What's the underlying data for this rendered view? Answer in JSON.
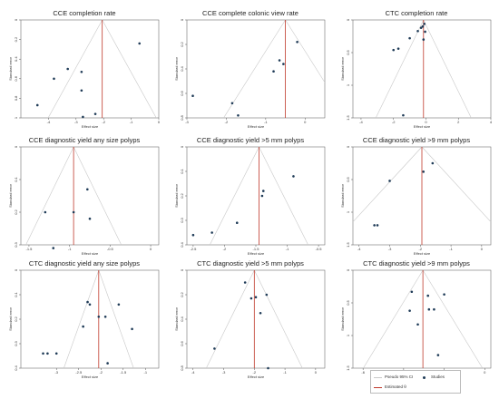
{
  "legend": {
    "items": [
      {
        "label": "Pseudo 95% CI",
        "kind": "line",
        "color": "#c8c8c8"
      },
      {
        "label": "Studies",
        "kind": "dot",
        "color": "#1f3b57"
      },
      {
        "label": "Estimated θ",
        "kind": "line",
        "color": "#c0392b"
      }
    ]
  },
  "colors": {
    "ci_lines": "#c8c8c8",
    "estimate": "#c0392b",
    "points": "#1f3b57",
    "axis": "#555555"
  },
  "chart_data": [
    {
      "type": "scatter",
      "title": "CCE completion rate",
      "xlabel": "Effect size",
      "ylabel": "Standard error",
      "xlim": [
        -5,
        0
      ],
      "xticks": [
        -4,
        -3,
        -2,
        -1,
        0
      ],
      "ylim": [
        0,
        1
      ],
      "yticks": [
        0,
        0.2,
        0.4,
        0.6,
        0.8,
        1
      ],
      "estimate": -2.05,
      "points": [
        [
          -4.4,
          0.87
        ],
        [
          -3.8,
          0.6
        ],
        [
          -3.3,
          0.5
        ],
        [
          -2.8,
          0.53
        ],
        [
          -2.8,
          0.72
        ],
        [
          -2.75,
          0.99
        ],
        [
          -2.3,
          0.96
        ],
        [
          -0.7,
          0.24
        ]
      ]
    },
    {
      "type": "scatter",
      "title": "CCE complete colonic view rate",
      "xlabel": "Effect size",
      "ylabel": "Standard error",
      "xlim": [
        -3,
        0.5
      ],
      "xticks": [
        -3,
        -2,
        -1,
        0
      ],
      "ylim": [
        0,
        0.8
      ],
      "yticks": [
        0,
        0.2,
        0.4,
        0.6,
        0.8
      ],
      "estimate": -0.5,
      "points": [
        [
          -2.85,
          0.62
        ],
        [
          -1.85,
          0.68
        ],
        [
          -1.7,
          0.78
        ],
        [
          -0.8,
          0.42
        ],
        [
          -0.65,
          0.33
        ],
        [
          -0.55,
          0.36
        ],
        [
          -0.2,
          0.18
        ]
      ]
    },
    {
      "type": "scatter",
      "title": "CTC completion rate",
      "xlabel": "Effect size",
      "ylabel": "Standard error",
      "xlim": [
        -4.5,
        4
      ],
      "xticks": [
        -4,
        -2,
        0,
        2,
        4
      ],
      "ylim": [
        0,
        1.5
      ],
      "yticks": [
        0,
        0.5,
        1,
        1.5
      ],
      "estimate": -0.15,
      "points": [
        [
          -2.0,
          0.46
        ],
        [
          -1.7,
          0.44
        ],
        [
          -1.0,
          0.28
        ],
        [
          -0.5,
          0.17
        ],
        [
          -0.3,
          0.12
        ],
        [
          -0.1,
          0.06
        ],
        [
          -0.05,
          0.18
        ],
        [
          -0.15,
          0.3
        ],
        [
          -0.2,
          0.1
        ],
        [
          -1.4,
          1.46
        ]
      ]
    },
    {
      "type": "scatter",
      "title": "CCE diagnostic yield any size polyps",
      "xlabel": "Effect size",
      "ylabel": "Standard error",
      "xlim": [
        -1.6,
        0.1
      ],
      "xticks": [
        -1.5,
        -1,
        -0.5,
        0
      ],
      "ylim": [
        0,
        0.3
      ],
      "yticks": [
        0,
        0.1,
        0.2,
        0.3
      ],
      "estimate": -0.95,
      "points": [
        [
          -1.3,
          0.2
        ],
        [
          -1.2,
          0.31
        ],
        [
          -0.95,
          0.2
        ],
        [
          -0.78,
          0.13
        ],
        [
          -0.75,
          0.22
        ]
      ]
    },
    {
      "type": "scatter",
      "title": "CCE diagnostic yield >5 mm polyps",
      "xlabel": "Effect size",
      "ylabel": "Standard error",
      "xlim": [
        -2.6,
        -0.4
      ],
      "xticks": [
        -2.5,
        -2,
        -1.5,
        -1,
        -0.5
      ],
      "ylim": [
        0,
        0.4
      ],
      "yticks": [
        0,
        0.1,
        0.2,
        0.3,
        0.4
      ],
      "estimate": -1.45,
      "points": [
        [
          -2.5,
          0.36
        ],
        [
          -2.2,
          0.35
        ],
        [
          -1.8,
          0.31
        ],
        [
          -1.4,
          0.2
        ],
        [
          -1.38,
          0.18
        ],
        [
          -0.9,
          0.12
        ]
      ]
    },
    {
      "type": "scatter",
      "title": "CCE diagnostic yield >9 mm polyps",
      "xlabel": "Effect size",
      "ylabel": "Standard error",
      "xlim": [
        -4.2,
        0.3
      ],
      "xticks": [
        -4,
        -3,
        -2,
        -1,
        0
      ],
      "ylim": [
        0,
        1.5
      ],
      "yticks": [
        0,
        0.5,
        1,
        1.5
      ],
      "estimate": -1.95,
      "points": [
        [
          -3.5,
          1.2
        ],
        [
          -3.4,
          1.2
        ],
        [
          -3.0,
          0.52
        ],
        [
          -1.9,
          0.38
        ],
        [
          -1.6,
          0.25
        ]
      ]
    },
    {
      "type": "scatter",
      "title": "CTC diagnostic yield any size polyps",
      "xlabel": "Effect size",
      "ylabel": "Standard error",
      "xlim": [
        -3.8,
        -0.7
      ],
      "xticks": [
        -3,
        -2.5,
        -2,
        -1.5,
        -1
      ],
      "ylim": [
        0,
        0.4
      ],
      "yticks": [
        0,
        0.1,
        0.2,
        0.3,
        0.4
      ],
      "estimate": -2.05,
      "points": [
        [
          -3.3,
          0.34
        ],
        [
          -3.2,
          0.34
        ],
        [
          -3.0,
          0.34
        ],
        [
          -2.4,
          0.23
        ],
        [
          -2.3,
          0.13
        ],
        [
          -2.25,
          0.14
        ],
        [
          -2.05,
          0.19
        ],
        [
          -1.9,
          0.19
        ],
        [
          -1.85,
          0.38
        ],
        [
          -1.6,
          0.14
        ],
        [
          -1.3,
          0.24
        ]
      ]
    },
    {
      "type": "scatter",
      "title": "CTC diagnostic yield >5 mm polyps",
      "xlabel": "Effect size",
      "ylabel": "Standard error",
      "xlim": [
        -4.2,
        0.3
      ],
      "xticks": [
        -4,
        -3,
        -2,
        -1,
        0
      ],
      "ylim": [
        0,
        0.8
      ],
      "yticks": [
        0,
        0.2,
        0.4,
        0.6,
        0.8
      ],
      "estimate": -2.0,
      "points": [
        [
          -3.3,
          0.64
        ],
        [
          -2.3,
          0.1
        ],
        [
          -2.1,
          0.23
        ],
        [
          -1.95,
          0.22
        ],
        [
          -1.8,
          0.35
        ],
        [
          -1.6,
          0.2
        ],
        [
          -1.55,
          0.8
        ]
      ]
    },
    {
      "type": "scatter",
      "title": "CTC diagnostic yield >9 mm polyps",
      "xlabel": "Effect size",
      "ylabel": "Standard error",
      "xlim": [
        -6.5,
        0.3
      ],
      "xticks": [
        -6,
        -4,
        -2,
        0
      ],
      "ylim": [
        0,
        1.5
      ],
      "yticks": [
        0,
        0.5,
        1,
        1.5
      ],
      "estimate": -3.05,
      "points": [
        [
          -3.6,
          0.33
        ],
        [
          -3.7,
          0.62
        ],
        [
          -3.3,
          0.83
        ],
        [
          -2.75,
          0.6
        ],
        [
          -2.5,
          0.6
        ],
        [
          -2.8,
          0.39
        ],
        [
          -2.0,
          0.37
        ],
        [
          -2.3,
          1.3
        ]
      ]
    }
  ]
}
